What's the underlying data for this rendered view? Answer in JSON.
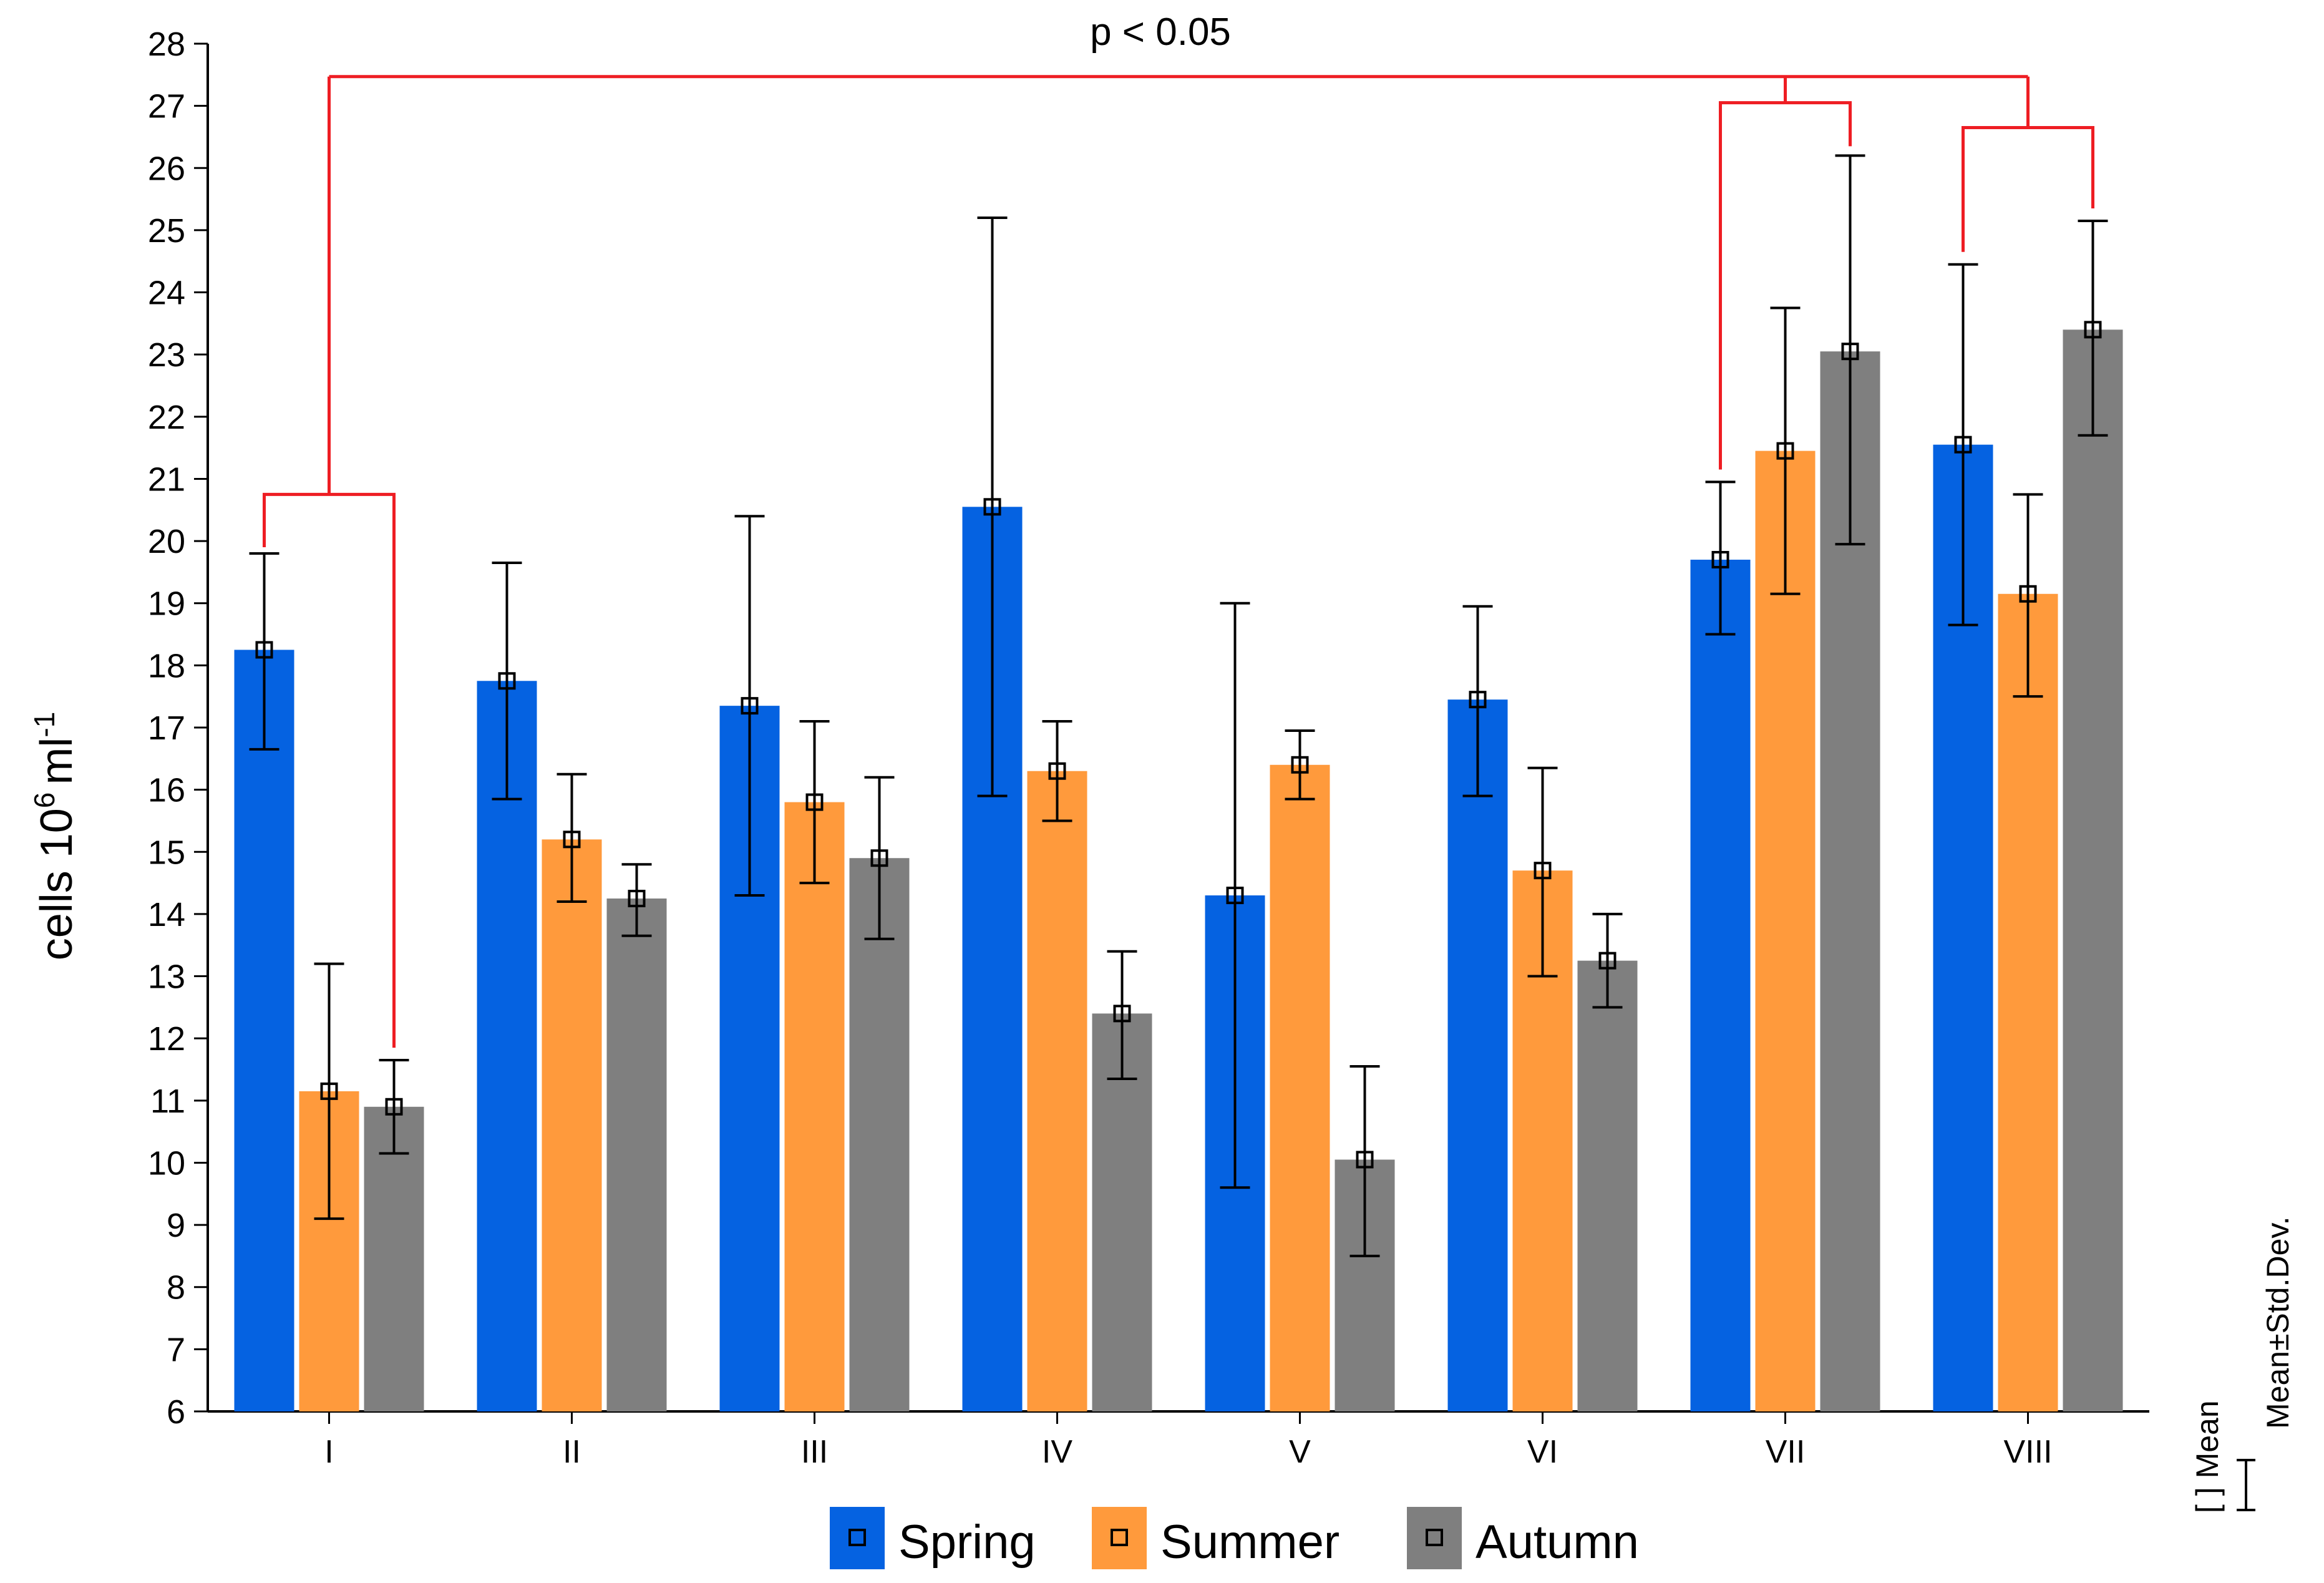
{
  "chart_data": {
    "type": "bar",
    "ylabel": "cells 10",
    "ylabel_sup": "6",
    "ylabel_unit": "ml",
    "ylabel_unit_sup": "-1",
    "ylim": [
      6,
      28
    ],
    "y_ticks": [
      "6",
      "7",
      "8",
      "9",
      "10",
      "11",
      "12",
      "13",
      "14",
      "15",
      "16",
      "17",
      "18",
      "19",
      "20",
      "21",
      "22",
      "23",
      "24",
      "25",
      "26",
      "27",
      "28"
    ],
    "categories": [
      "I",
      "II",
      "III",
      "IV",
      "V",
      "VI",
      "VII",
      "VIII"
    ],
    "series": [
      {
        "name": "Spring",
        "color": "#0562e1",
        "values": [
          18.25,
          17.75,
          17.35,
          20.55,
          14.3,
          17.45,
          19.7,
          21.55
        ],
        "sd_low": [
          16.65,
          15.85,
          14.3,
          15.9,
          9.6,
          15.9,
          18.5,
          18.65
        ],
        "sd_high": [
          19.8,
          19.65,
          20.4,
          25.2,
          19.0,
          18.95,
          20.95,
          24.45
        ]
      },
      {
        "name": "Summer",
        "color": "#ff9a3c",
        "values": [
          11.15,
          15.2,
          15.8,
          16.3,
          16.4,
          14.7,
          21.45,
          19.15
        ],
        "sd_low": [
          9.1,
          14.2,
          14.5,
          15.5,
          15.85,
          13.0,
          19.15,
          17.5
        ],
        "sd_high": [
          13.2,
          16.25,
          17.1,
          17.1,
          16.95,
          16.35,
          23.75,
          20.75
        ]
      },
      {
        "name": "Autumn",
        "color": "#7f7f7f",
        "values": [
          10.9,
          14.25,
          14.9,
          12.4,
          10.05,
          13.25,
          23.05,
          23.4
        ],
        "sd_low": [
          10.15,
          13.65,
          13.6,
          11.35,
          8.5,
          12.5,
          19.95,
          21.7
        ],
        "sd_high": [
          11.65,
          14.8,
          16.2,
          13.4,
          11.55,
          14.0,
          26.2,
          25.15
        ]
      }
    ],
    "legend": [
      "Spring",
      "Summer",
      "Autumn"
    ],
    "annotation": "p < 0.05",
    "side_legend": {
      "mean_label": "[ ] Mean",
      "sd_label": "Mean±Std.Dev."
    }
  }
}
